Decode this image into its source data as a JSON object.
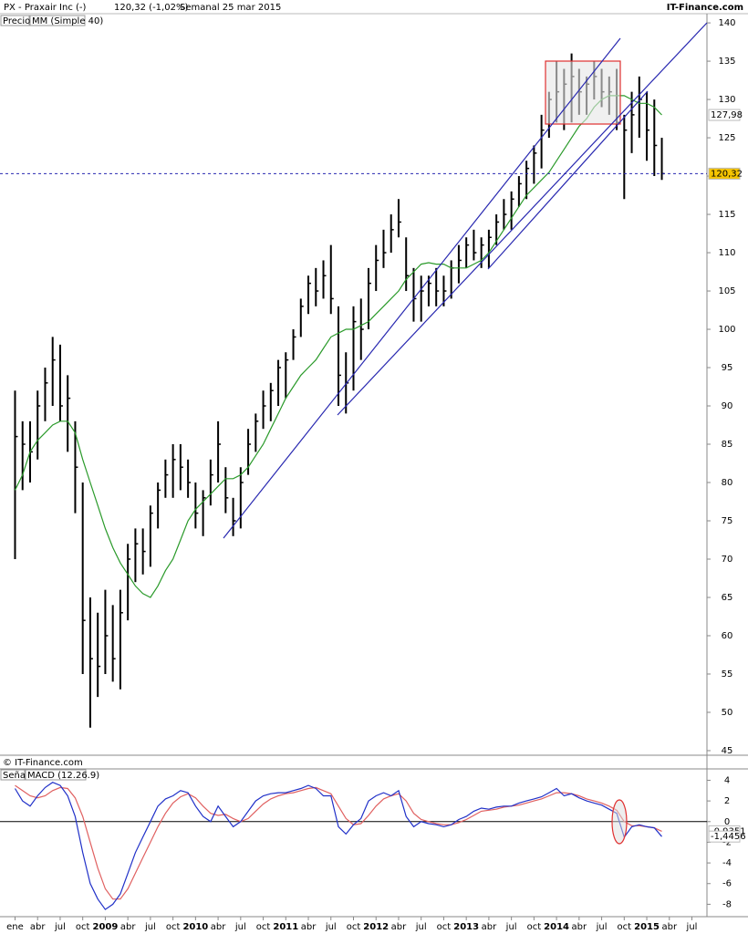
{
  "chart_data": [
    {
      "type": "ohlc",
      "title": "PX - Praxair Inc (-)",
      "subtitle": "120,32 (-1,02%)",
      "period": "Semanal 25 mar 2015",
      "source": "IT-Finance.com",
      "copyright": "© IT-Finance.com",
      "x": [
        "2008-01",
        "2008-02",
        "2008-03",
        "2008-04",
        "2008-05",
        "2008-06",
        "2008-07",
        "2008-08",
        "2008-09",
        "2008-10",
        "2008-11",
        "2008-12",
        "2009-01",
        "2009-02",
        "2009-03",
        "2009-04",
        "2009-05",
        "2009-06",
        "2009-07",
        "2009-08",
        "2009-09",
        "2009-10",
        "2009-11",
        "2009-12",
        "2010-01",
        "2010-02",
        "2010-03",
        "2010-04",
        "2010-05",
        "2010-06",
        "2010-07",
        "2010-08",
        "2010-09",
        "2010-10",
        "2010-11",
        "2010-12",
        "2011-01",
        "2011-02",
        "2011-03",
        "2011-04",
        "2011-05",
        "2011-06",
        "2011-07",
        "2011-08",
        "2011-09",
        "2011-10",
        "2011-11",
        "2011-12",
        "2012-01",
        "2012-02",
        "2012-03",
        "2012-04",
        "2012-05",
        "2012-06",
        "2012-07",
        "2012-08",
        "2012-09",
        "2012-10",
        "2012-11",
        "2012-12",
        "2013-01",
        "2013-02",
        "2013-03",
        "2013-04",
        "2013-05",
        "2013-06",
        "2013-07",
        "2013-08",
        "2013-09",
        "2013-10",
        "2013-11",
        "2013-12",
        "2014-01",
        "2014-02",
        "2014-03",
        "2014-04",
        "2014-05",
        "2014-06",
        "2014-07",
        "2014-08",
        "2014-09",
        "2014-10",
        "2014-11",
        "2014-12",
        "2015-01",
        "2015-02",
        "2015-03"
      ],
      "xlim": [
        "2007-11",
        "2015-09"
      ],
      "ylim": [
        44.4,
        141.2
      ],
      "yticks": [
        45,
        50,
        55,
        60,
        65,
        70,
        75,
        80,
        85,
        90,
        95,
        100,
        105,
        110,
        115,
        120,
        125,
        130,
        135,
        140
      ],
      "series": [
        {
          "name": "Precio",
          "color": "#000000",
          "last_value_label": "120,32",
          "high": [
            92,
            88,
            88,
            92,
            95,
            99,
            98,
            94,
            88,
            80,
            65,
            63,
            66,
            64,
            66,
            72,
            74,
            74,
            77,
            80,
            83,
            85,
            85,
            83,
            80,
            79,
            83,
            88,
            82,
            78,
            82,
            87,
            89,
            92,
            93,
            96,
            97,
            100,
            104,
            107,
            108,
            109,
            111,
            103,
            97,
            103,
            104,
            108,
            111,
            113,
            115,
            117,
            112,
            108,
            107,
            107,
            108,
            107,
            109,
            111,
            112,
            113,
            112,
            113,
            115,
            117,
            118,
            120,
            122,
            124,
            128,
            131,
            135,
            134,
            136,
            134,
            133,
            135,
            134,
            133,
            134,
            128,
            131,
            133,
            131,
            130,
            125
          ],
          "low": [
            70,
            79,
            80,
            83,
            88,
            90,
            88,
            84,
            76,
            55,
            48,
            52,
            55,
            54,
            53,
            62,
            67,
            68,
            69,
            74,
            78,
            78,
            79,
            78,
            74,
            73,
            77,
            80,
            76,
            73,
            74,
            81,
            84,
            87,
            88,
            90,
            91,
            96,
            99,
            102,
            103,
            104,
            102,
            90,
            89,
            92,
            96,
            100,
            105,
            108,
            110,
            112,
            105,
            101,
            101,
            103,
            103,
            103,
            104,
            106,
            108,
            109,
            108,
            108,
            111,
            113,
            113,
            116,
            117,
            119,
            121,
            125,
            127,
            126,
            127,
            128,
            128,
            130,
            129,
            128,
            126,
            117,
            123,
            125,
            122,
            120,
            119.5
          ],
          "values": [
            86,
            85,
            84,
            90,
            93,
            96,
            90,
            91,
            82,
            62,
            57,
            56,
            60,
            57,
            63,
            70,
            72,
            71,
            76,
            79,
            81,
            83,
            82,
            80,
            76,
            78,
            81,
            85,
            78,
            75,
            80,
            85,
            88,
            90,
            92,
            95,
            96,
            99,
            103,
            106,
            105,
            107,
            104,
            94,
            93,
            101,
            100,
            106,
            109,
            110,
            113,
            114,
            107,
            104,
            105,
            106,
            105,
            105,
            108,
            109,
            111,
            110,
            111,
            112,
            114,
            115,
            117,
            119,
            121,
            123,
            126,
            130,
            131,
            132,
            133,
            131,
            132,
            133,
            131,
            131,
            127,
            126,
            128,
            130,
            126,
            124,
            120.32
          ]
        },
        {
          "name": "MM (Simple 40)",
          "color": "#2a9a2a",
          "last_value_label": "127,98",
          "values": [
            79,
            81,
            84,
            85.5,
            86.5,
            87.5,
            88,
            88,
            86.5,
            83,
            80,
            77,
            74,
            71.5,
            69.5,
            68,
            66.5,
            65.5,
            65,
            66.5,
            68.5,
            70,
            72.5,
            75,
            76.5,
            77.5,
            78.5,
            79.5,
            80.5,
            80.5,
            81,
            82,
            83.5,
            85,
            87,
            89,
            91,
            92.5,
            94,
            95,
            96,
            97.5,
            99,
            99.5,
            100,
            100,
            100.5,
            101,
            102,
            103,
            104,
            105,
            106.5,
            107.5,
            108.5,
            108.7,
            108.5,
            108.5,
            108,
            108,
            108,
            108.5,
            109,
            110,
            111.5,
            113,
            114.5,
            116,
            117.5,
            118.5,
            119.5,
            120.5,
            122,
            123.5,
            125,
            126.5,
            127.5,
            129,
            130,
            130.5,
            130.5,
            130.5,
            130,
            129.5,
            129.5,
            129,
            127.98
          ]
        }
      ]
    },
    {
      "type": "line",
      "x": [
        "2008-01",
        "2008-02",
        "2008-03",
        "2008-04",
        "2008-05",
        "2008-06",
        "2008-07",
        "2008-08",
        "2008-09",
        "2008-10",
        "2008-11",
        "2008-12",
        "2009-01",
        "2009-02",
        "2009-03",
        "2009-04",
        "2009-05",
        "2009-06",
        "2009-07",
        "2009-08",
        "2009-09",
        "2009-10",
        "2009-11",
        "2009-12",
        "2010-01",
        "2010-02",
        "2010-03",
        "2010-04",
        "2010-05",
        "2010-06",
        "2010-07",
        "2010-08",
        "2010-09",
        "2010-10",
        "2010-11",
        "2010-12",
        "2011-01",
        "2011-02",
        "2011-03",
        "2011-04",
        "2011-05",
        "2011-06",
        "2011-07",
        "2011-08",
        "2011-09",
        "2011-10",
        "2011-11",
        "2011-12",
        "2012-01",
        "2012-02",
        "2012-03",
        "2012-04",
        "2012-05",
        "2012-06",
        "2012-07",
        "2012-08",
        "2012-09",
        "2012-10",
        "2012-11",
        "2012-12",
        "2013-01",
        "2013-02",
        "2013-03",
        "2013-04",
        "2013-05",
        "2013-06",
        "2013-07",
        "2013-08",
        "2013-09",
        "2013-10",
        "2013-11",
        "2013-12",
        "2014-01",
        "2014-02",
        "2014-03",
        "2014-04",
        "2014-05",
        "2014-06",
        "2014-07",
        "2014-08",
        "2014-09",
        "2014-10",
        "2014-11",
        "2014-12",
        "2015-01",
        "2015-02",
        "2015-03"
      ],
      "xlim": [
        "2007-11",
        "2015-09"
      ],
      "ylim": [
        -9.2,
        5.1
      ],
      "yticks": [
        4,
        2,
        0,
        -2,
        -4,
        -6,
        -8
      ],
      "xticks": [
        {
          "value": "2008-01",
          "label": "ene"
        },
        {
          "value": "2008-04",
          "label": "abr"
        },
        {
          "value": "2008-07",
          "label": "jul"
        },
        {
          "value": "2008-10",
          "label": "oct"
        },
        {
          "value": "2009-01",
          "label": "2009"
        },
        {
          "value": "2009-04",
          "label": "abr"
        },
        {
          "value": "2009-07",
          "label": "jul"
        },
        {
          "value": "2009-10",
          "label": "oct"
        },
        {
          "value": "2010-01",
          "label": "2010"
        },
        {
          "value": "2010-04",
          "label": "abr"
        },
        {
          "value": "2010-07",
          "label": "jul"
        },
        {
          "value": "2010-10",
          "label": "oct"
        },
        {
          "value": "2011-01",
          "label": "2011"
        },
        {
          "value": "2011-04",
          "label": "abr"
        },
        {
          "value": "2011-07",
          "label": "jul"
        },
        {
          "value": "2011-10",
          "label": "oct"
        },
        {
          "value": "2012-01",
          "label": "2012"
        },
        {
          "value": "2012-04",
          "label": "abr"
        },
        {
          "value": "2012-07",
          "label": "jul"
        },
        {
          "value": "2012-10",
          "label": "oct"
        },
        {
          "value": "2013-01",
          "label": "2013"
        },
        {
          "value": "2013-04",
          "label": "abr"
        },
        {
          "value": "2013-07",
          "label": "jul"
        },
        {
          "value": "2013-10",
          "label": "oct"
        },
        {
          "value": "2014-01",
          "label": "2014"
        },
        {
          "value": "2014-04",
          "label": "abr"
        },
        {
          "value": "2014-07",
          "label": "jul"
        },
        {
          "value": "2014-10",
          "label": "oct"
        },
        {
          "value": "2015-01",
          "label": "2015"
        },
        {
          "value": "2015-04",
          "label": "abr"
        },
        {
          "value": "2015-07",
          "label": "jul"
        }
      ],
      "series": [
        {
          "name": "Señal",
          "color": "#e06060",
          "last_value_label": "-0,9351",
          "values": [
            3.5,
            3,
            2.5,
            2.3,
            2.5,
            3,
            3.3,
            3.2,
            2.3,
            0.5,
            -2,
            -4.5,
            -6.5,
            -7.5,
            -7.5,
            -6.5,
            -5,
            -3.5,
            -2,
            -0.5,
            0.8,
            1.8,
            2.4,
            2.7,
            2.3,
            1.5,
            0.8,
            0.6,
            0.7,
            0.3,
            0,
            0.3,
            1,
            1.7,
            2.2,
            2.5,
            2.7,
            2.8,
            3,
            3.2,
            3.3,
            3,
            2.7,
            1.5,
            0.3,
            -0.3,
            -0.2,
            0.6,
            1.5,
            2.2,
            2.5,
            2.7,
            2,
            0.8,
            0.2,
            0,
            -0.2,
            -0.3,
            -0.3,
            -0.1,
            0.2,
            0.6,
            1,
            1.1,
            1.2,
            1.4,
            1.5,
            1.6,
            1.8,
            2,
            2.2,
            2.5,
            2.8,
            2.8,
            2.7,
            2.5,
            2.2,
            2,
            1.8,
            1.5,
            1.1,
            0,
            -0.4,
            -0.4,
            -0.5,
            -0.6,
            -0.9351
          ]
        },
        {
          "name": "MACD (12.26.9)",
          "color": "#2030c8",
          "last_value_label": "-1,4456",
          "values": [
            3.2,
            2,
            1.5,
            2.5,
            3.3,
            3.8,
            3.5,
            2.5,
            0.5,
            -3,
            -6,
            -7.5,
            -8.5,
            -8,
            -7,
            -5,
            -3,
            -1.5,
            0,
            1.5,
            2.2,
            2.5,
            3,
            2.8,
            1.5,
            0.5,
            0,
            1.5,
            0.5,
            -0.5,
            0,
            1,
            2,
            2.5,
            2.7,
            2.8,
            2.8,
            3,
            3.2,
            3.5,
            3.2,
            2.5,
            2.5,
            -0.5,
            -1.2,
            -0.3,
            0.3,
            2,
            2.5,
            2.8,
            2.5,
            3,
            0.5,
            -0.5,
            0,
            -0.2,
            -0.3,
            -0.5,
            -0.3,
            0.2,
            0.5,
            1,
            1.3,
            1.2,
            1.4,
            1.5,
            1.5,
            1.8,
            2,
            2.2,
            2.4,
            2.8,
            3.2,
            2.5,
            2.7,
            2.3,
            2,
            1.8,
            1.6,
            1.2,
            0.8,
            -1.5,
            -0.5,
            -0.3,
            -0.5,
            -0.6,
            -1.4456
          ]
        }
      ]
    }
  ]
}
